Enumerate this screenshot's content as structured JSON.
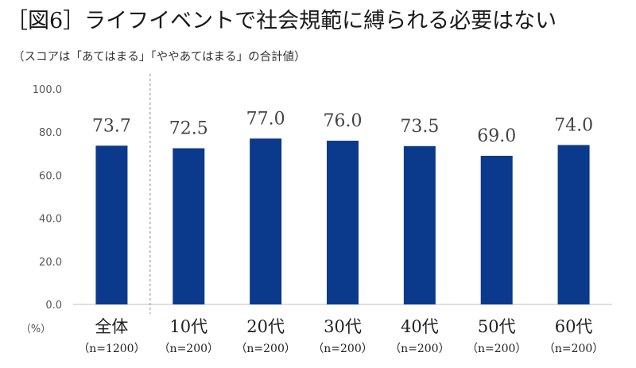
{
  "title": "［図6］ライフイベントで社会規範に縛られる必要はない",
  "subtitle": "（スコアは「あてはまる」「ややあてはまる」の合計値）",
  "unit_label": "（%）",
  "colors": {
    "bar": "#0b3a8c",
    "axis": "#bfbfbf",
    "divider": "#888888"
  },
  "chart_data": {
    "type": "bar",
    "title": "［図6］ライフイベントで社会規範に縛られる必要はない",
    "subtitle": "（スコアは「あてはまる」「ややあてはまる」の合計値）",
    "categories": [
      "全体",
      "10代",
      "20代",
      "30代",
      "40代",
      "50代",
      "60代"
    ],
    "sample_sizes": [
      "（n=1200）",
      "（n=200）",
      "（n=200）",
      "（n=200）",
      "（n=200）",
      "（n=200）",
      "（n=200）"
    ],
    "values": [
      73.7,
      72.5,
      77.0,
      76.0,
      73.5,
      69.0,
      74.0
    ],
    "data_labels": [
      "73.7",
      "72.5",
      "77.0",
      "76.0",
      "73.5",
      "69.0",
      "74.0"
    ],
    "yticks": [
      "0.0",
      "20.0",
      "40.0",
      "60.0",
      "80.0",
      "100.0"
    ],
    "ylim": [
      0,
      100
    ],
    "ylabel": "（%）",
    "grid": false,
    "legend": "none"
  }
}
